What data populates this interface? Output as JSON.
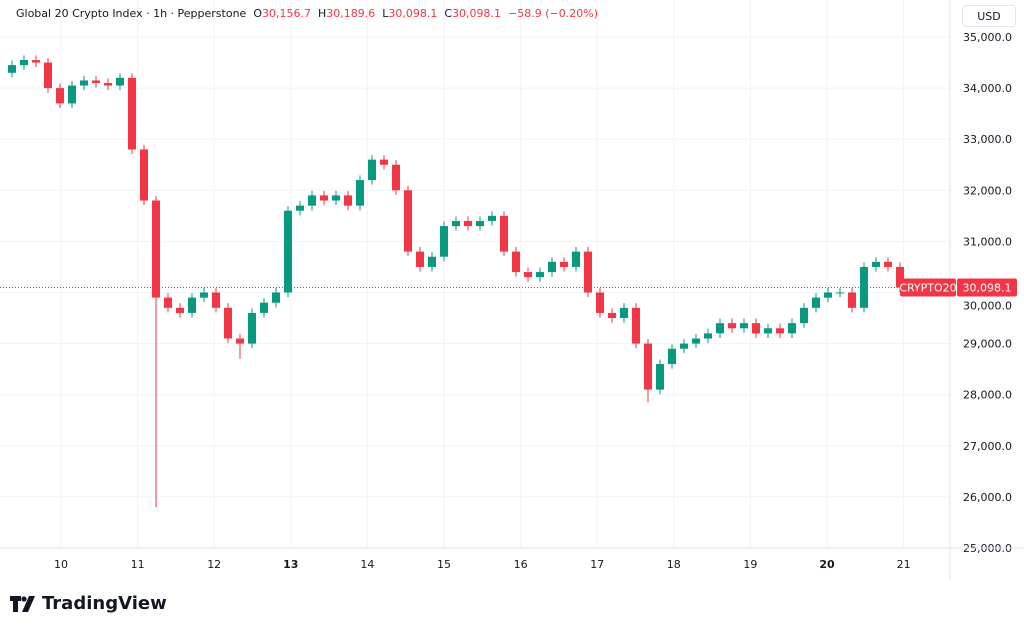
{
  "header": {
    "symbol": "Global 20 Crypto Index · 1h · Pepperstone",
    "o_label": "O",
    "o": "30,156.7",
    "h_label": "H",
    "h": "30,189.6",
    "l_label": "L",
    "l": "30,098.1",
    "c_label": "C",
    "c": "30,098.1",
    "change": "−58.9 (−0.20%)"
  },
  "currency": "USD",
  "brand": "TradingView",
  "chart_data": {
    "type": "candlestick",
    "title": "Global 20 Crypto Index · 1h · Pepperstone",
    "ylim": [
      25000,
      35000
    ],
    "yticks": [
      25000,
      26000,
      27000,
      28000,
      29000,
      30000,
      31000,
      32000,
      33000,
      34000,
      35000
    ],
    "ytick_labels": [
      "25,000.0",
      "26,000.0",
      "27,000.0",
      "28,000.0",
      "29,000.0",
      "30,000.0",
      "31,000.0",
      "32,000.0",
      "33,000.0",
      "34,000.0",
      "35,000.0"
    ],
    "xtick_labels": [
      "10",
      "11",
      "12",
      "13",
      "14",
      "15",
      "16",
      "17",
      "18",
      "19",
      "20",
      "21"
    ],
    "bold_xticks": [
      "13",
      "20"
    ],
    "first_open": 34300,
    "closes": [
      34450,
      34550,
      34500,
      34000,
      33700,
      34050,
      34150,
      34100,
      34050,
      34200,
      32800,
      31800,
      29900,
      29700,
      29600,
      29900,
      30000,
      29700,
      29100,
      29000,
      29600,
      29800,
      30000,
      31600,
      31700,
      31900,
      31800,
      31900,
      31700,
      32200,
      32600,
      32500,
      32000,
      30800,
      30500,
      30700,
      31300,
      31400,
      31300,
      31400,
      31500,
      30800,
      30400,
      30300,
      30400,
      30600,
      30500,
      30800,
      30000,
      29600,
      29500,
      29700,
      29000,
      28100,
      28600,
      28900,
      29000,
      29100,
      29200,
      29400,
      29300,
      29400,
      29200,
      29300,
      29200,
      29400,
      29700,
      29900,
      30000,
      30000,
      29700,
      30500,
      30600,
      30500,
      30100,
      30098.1
    ],
    "low_overrides": {
      "12": 25800,
      "19": 28700,
      "53": 27850
    },
    "last_price": 30098.1,
    "last_label": "30,098.1",
    "symbol_tag": "CRYPTO20",
    "up_color": "#089981",
    "down_color": "#f23645"
  }
}
